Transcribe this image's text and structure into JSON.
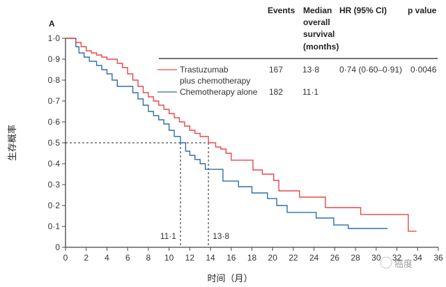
{
  "chart_data": {
    "type": "line",
    "step": true,
    "panel_label": "A",
    "xlabel": "时间（月）",
    "ylabel": "生存概率",
    "xlim": [
      0,
      36
    ],
    "ylim": [
      0,
      1.0
    ],
    "xticks": [
      "0",
      "2",
      "4",
      "6",
      "8",
      "10",
      "12",
      "14",
      "16",
      "18",
      "20",
      "22",
      "24",
      "26",
      "28",
      "30",
      "32",
      "34",
      "36"
    ],
    "yticks": [
      "0",
      "0·1",
      "0·2",
      "0·3",
      "0·4",
      "0·5",
      "0·6",
      "0·7",
      "0·8",
      "0·9",
      "1·0"
    ],
    "colors": {
      "trastuzumab": "#e8474b",
      "chemo": "#2f6fa8"
    },
    "table": {
      "headers": [
        "Events",
        "Median overall survival (months)",
        "HR (95% CI)",
        "p value"
      ],
      "header_lines": {
        "median": [
          "Median",
          "overall",
          "survival",
          "(months)"
        ]
      },
      "rows": [
        {
          "name_lines": [
            "Trastuzumab",
            "plus chemotherapy"
          ],
          "events": "167",
          "median": "13·8",
          "hr": "0·74 (0·60–0·91)",
          "p": "0·0046"
        },
        {
          "name_lines": [
            "Chemotherapy alone"
          ],
          "events": "182",
          "median": "11·1",
          "hr": "",
          "p": ""
        }
      ]
    },
    "median_annotations": {
      "y": 0.5,
      "values": [
        11.1,
        13.8
      ],
      "labels": [
        "11·1",
        "13·8"
      ]
    },
    "series": [
      {
        "name": "Trastuzumab plus chemotherapy",
        "x": [
          0,
          1,
          1.5,
          2,
          2.5,
          3,
          3.5,
          4,
          5,
          5.5,
          6,
          6.5,
          7,
          7.5,
          8,
          8.5,
          9,
          9.5,
          10,
          10.5,
          11,
          11.5,
          12,
          12.5,
          13,
          13.8,
          14.5,
          15,
          15.5,
          16,
          17.9,
          18.1,
          19,
          20.1,
          20.6,
          21.6,
          22.6,
          23.6,
          25.1,
          28,
          28.5,
          33.1,
          33.9
        ],
        "y": [
          1.0,
          0.98,
          0.96,
          0.94,
          0.93,
          0.92,
          0.91,
          0.9,
          0.88,
          0.86,
          0.83,
          0.8,
          0.77,
          0.74,
          0.72,
          0.7,
          0.68,
          0.66,
          0.64,
          0.62,
          0.6,
          0.58,
          0.56,
          0.545,
          0.53,
          0.5,
          0.48,
          0.47,
          0.45,
          0.417,
          0.417,
          0.37,
          0.35,
          0.32,
          0.27,
          0.27,
          0.24,
          0.24,
          0.19,
          0.19,
          0.157,
          0.077,
          0.077
        ]
      },
      {
        "name": "Chemotherapy alone",
        "x": [
          0,
          1,
          1.3,
          1.8,
          2.3,
          3,
          3.5,
          4,
          4.5,
          5,
          6,
          6.5,
          7,
          7.5,
          8,
          8.5,
          9,
          9.5,
          10,
          10.5,
          11.1,
          11.6,
          12,
          12.5,
          13,
          13.5,
          14.7,
          15.2,
          16.5,
          16.7,
          17.6,
          18,
          19.5,
          20.4,
          21.4,
          23.8,
          24.2,
          25.9,
          27.3,
          31.1
        ],
        "y": [
          1.0,
          0.96,
          0.93,
          0.91,
          0.89,
          0.87,
          0.85,
          0.83,
          0.8,
          0.77,
          0.77,
          0.74,
          0.71,
          0.68,
          0.65,
          0.63,
          0.61,
          0.59,
          0.56,
          0.53,
          0.5,
          0.46,
          0.44,
          0.42,
          0.4,
          0.373,
          0.373,
          0.317,
          0.317,
          0.29,
          0.29,
          0.26,
          0.233,
          0.2,
          0.167,
          0.167,
          0.14,
          0.107,
          0.09,
          0.09
        ]
      }
    ]
  },
  "watermark": "癌度"
}
